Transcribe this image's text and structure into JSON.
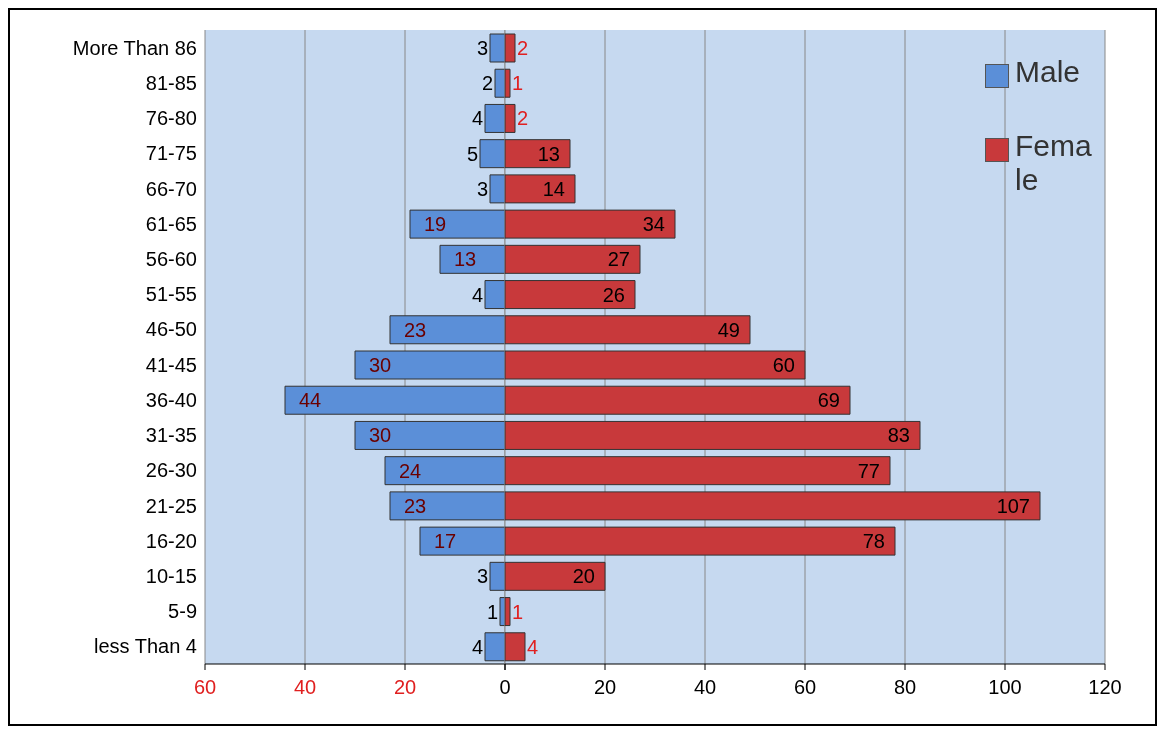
{
  "chart_data": [
    {
      "type": "bar",
      "orientation": "horizontal",
      "categories": [
        "More Than 86",
        "81-85",
        "76-80",
        "71-75",
        "66-70",
        "61-65",
        "56-60",
        "51-55",
        "46-50",
        "41-45",
        "36-40",
        "31-35",
        "26-30",
        "21-25",
        "16-20",
        "10-15",
        "5-9",
        "less Than 4"
      ],
      "series": [
        {
          "name": "Male",
          "color": "#5b8fd8",
          "values": [
            3,
            2,
            4,
            5,
            3,
            19,
            13,
            4,
            23,
            30,
            44,
            30,
            24,
            23,
            17,
            3,
            1,
            4
          ]
        }
      ],
      "data_labels": true,
      "xlim": [
        60,
        0
      ],
      "xticks": [
        60,
        40,
        20,
        {
          "value": 0,
          "label": null
        }
      ],
      "grid": "x",
      "legend": "top right"
    },
    {
      "type": "bar",
      "orientation": "horizontal",
      "categories": [
        "More Than 86",
        "81-85",
        "76-80",
        "71-75",
        "66-70",
        "61-65",
        "56-60",
        "51-55",
        "46-50",
        "41-45",
        "36-40",
        "31-35",
        "26-30",
        "21-25",
        "16-20",
        "10-15",
        "5-9",
        "less Than 4"
      ],
      "series": [
        {
          "name": "Female",
          "color": "#c8393b",
          "values": [
            2,
            1,
            2,
            13,
            14,
            34,
            27,
            26,
            49,
            60,
            69,
            83,
            77,
            107,
            78,
            20,
            1,
            4
          ]
        }
      ],
      "data_labels": true,
      "xlim": [
        0,
        120
      ],
      "xticks": [
        0,
        20,
        40,
        60,
        80,
        100,
        120
      ],
      "grid": "x",
      "legend": "top right",
      "tick_labels": "x"
    }
  ]
}
